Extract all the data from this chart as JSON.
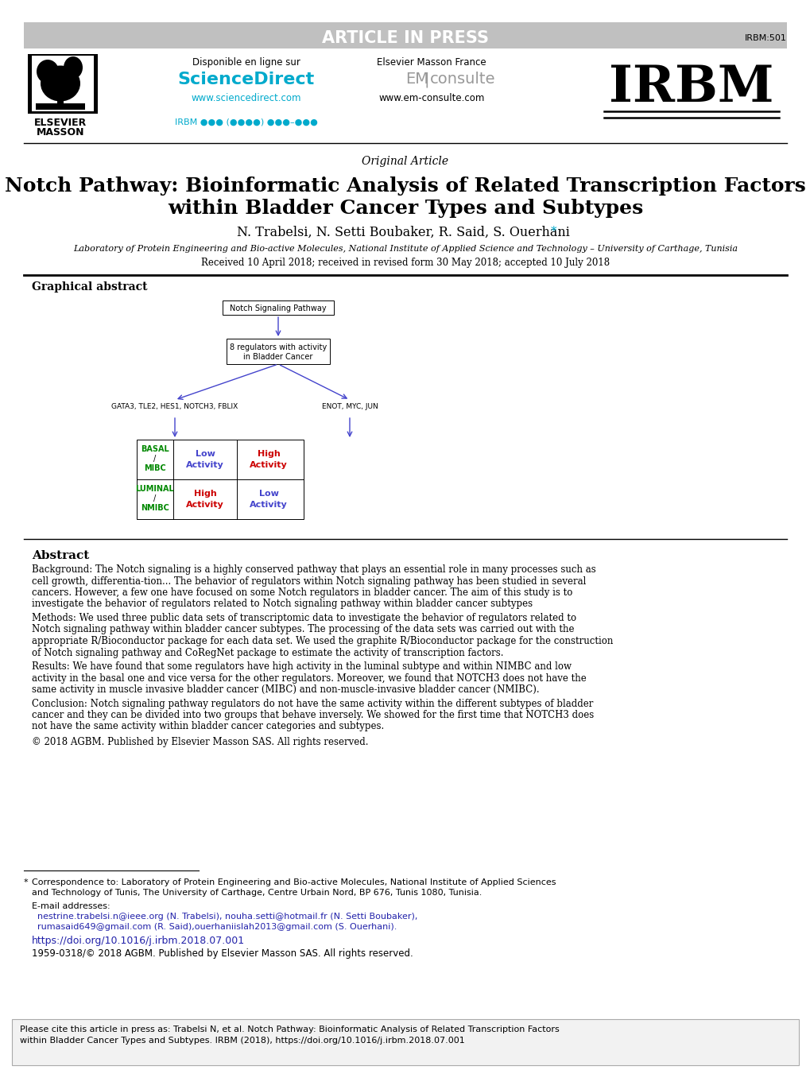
{
  "article_in_press_text": "ARTICLE IN PRESS",
  "article_in_press_bg": "#c8c8c8",
  "article_id": "IRBM:501",
  "journal_name": "IRBM",
  "disponible_text": "Disponible en ligne sur",
  "sciencedirect_text": "ScienceDirect",
  "sciencedirect_url": "www.sciencedirect.com",
  "elsevier_masson_text": "Elsevier Masson France",
  "em_consulte_text": "EM|consulte",
  "em_consulte_url": "www.em-consulte.com",
  "irbm_ref": "IRBM ●●● (●●●●) ●●●–●●●",
  "article_type": "Original Article",
  "title_line1": "Notch Pathway: Bioinformatic Analysis of Related Transcription Factors",
  "title_line2": "within Bladder Cancer Types and Subtypes",
  "authors": "N. Trabelsi, N. Setti Boubaker, R. Said, S. Ouerhani",
  "affiliation": "Laboratory of Protein Engineering and Bio-active Molecules, National Institute of Applied Science and Technology – University of Carthage, Tunisia",
  "received": "Received 10 April 2018; received in revised form 30 May 2018; accepted 10 July 2018",
  "graphical_abstract_title": "Graphical abstract",
  "abstract_title": "Abstract",
  "background_label": "Background:",
  "background_text": "  The Notch signaling is a highly conserved pathway that plays an essential role in many processes such as cell growth, differentia-tion... The behavior of regulators within Notch signaling pathway has been studied in several cancers. However, a few one have focused on some Notch regulators in bladder cancer. The aim of this study is to investigate the behavior of regulators related to Notch signaling pathway within bladder cancer subtypes",
  "methods_label": "Methods:",
  "methods_text": "  We used three public data sets of transcriptomic data to investigate the behavior of regulators related to Notch signaling pathway within bladder cancer subtypes. The processing of the data sets was carried out with the appropriate R/Bioconductor package for each data set. We used the graphite R/Bioconductor package for the construction of Notch signaling pathway and CoRegNet package to estimate the activity of transcription factors.",
  "results_label": "Results:",
  "results_text": "  We have found that some regulators have high activity in the luminal subtype and within NIMBC and low activity in the basal one and vice versa for the other regulators. Moreover, we found that NOTCH3 does not have the same activity in muscle invasive bladder cancer (MIBC) and non-muscle-invasive bladder cancer (NMIBC).",
  "conclusion_label": "Conclusion:",
  "conclusion_text": "  Notch signaling pathway regulators do not have the same activity within the different subtypes of bladder cancer and they can be divided into two groups that behave inversely. We showed for the first time that NOTCH3 does not have the same activity within bladder cancer categories and subtypes.",
  "copyright_text": "© 2018 AGBM. Published by Elsevier Masson SAS. All rights reserved.",
  "footnote_correspondence": "Correspondence to: Laboratory of Protein Engineering and Bio-active Molecules, National Institute of Applied Sciences and Technology of Tunis, The University of Carthage, Centre Urbain Nord, BP 676, Tunis 1080, Tunisia.",
  "email_label": "E-mail addresses:",
  "email_1": "nestrine.trabelsi.n@ieee.org",
  "email_1_suffix": " (N. Trabelsi), ",
  "email_2": "nouha.setti@hotmail.fr",
  "email_2_suffix": " (N. Setti Boubaker), ",
  "email_3": "rumasaid649@gmail.com",
  "email_3_suffix": " (R. Said),",
  "email_4": "ouerhaniislah2013@gmail.com",
  "email_4_suffix": " (S. Ouerhani).",
  "doi_text": "https://doi.org/10.1016/j.irbm.2018.07.001",
  "issn_text": "1959-0318/© 2018 AGBM. Published by Elsevier Masson SAS. All rights reserved.",
  "cite_box_text": "Please cite this article in press as: Trabelsi N, et al. Notch Pathway: Bioinformatic Analysis of Related Transcription Factors within Bladder Cancer Types and Subtypes. IRBM (2018), https://doi.org/10.1016/j.irbm.2018.07.001",
  "color_blue": "#00aacc",
  "color_diagram_blue": "#4444cc",
  "color_green": "#008800",
  "color_red": "#cc0000",
  "color_doi": "#2222aa",
  "color_email": "#2222aa"
}
